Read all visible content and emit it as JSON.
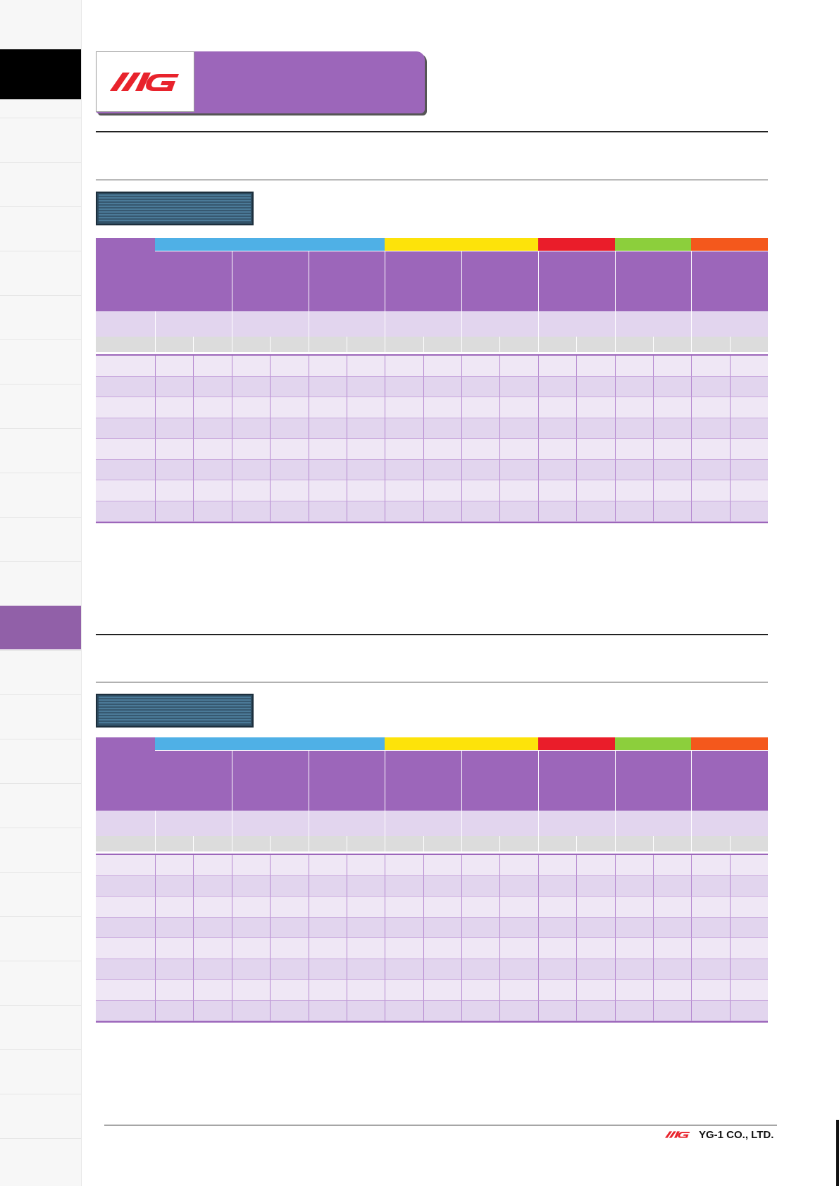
{
  "brand": {
    "logo_text": "YG",
    "company": "YG-1 CO., LTD.",
    "logo_color": "#e8232c"
  },
  "colors": {
    "purple": "#9c66ba",
    "light_purple": "#e2d5ee",
    "lighter_purple": "#efe7f5",
    "grey": "#dcdcdc",
    "group_colors": [
      "#4fb0e6",
      "#fde30a",
      "#ea1d2a",
      "#8ccf3c",
      "#f4581c"
    ]
  },
  "tables": [
    {
      "groups": [
        {
          "color": "#4fb0e6",
          "span": 3
        },
        {
          "color": "#fde30a",
          "span": 2
        },
        {
          "color": "#ea1d2a",
          "span": 1
        },
        {
          "color": "#8ccf3c",
          "span": 1
        },
        {
          "color": "#f4581c",
          "span": 1
        }
      ],
      "row_count": 8
    },
    {
      "groups": [
        {
          "color": "#4fb0e6",
          "span": 3
        },
        {
          "color": "#fde30a",
          "span": 2
        },
        {
          "color": "#ea1d2a",
          "span": 1
        },
        {
          "color": "#8ccf3c",
          "span": 1
        },
        {
          "color": "#f4581c",
          "span": 1
        }
      ],
      "row_count": 8
    }
  ]
}
